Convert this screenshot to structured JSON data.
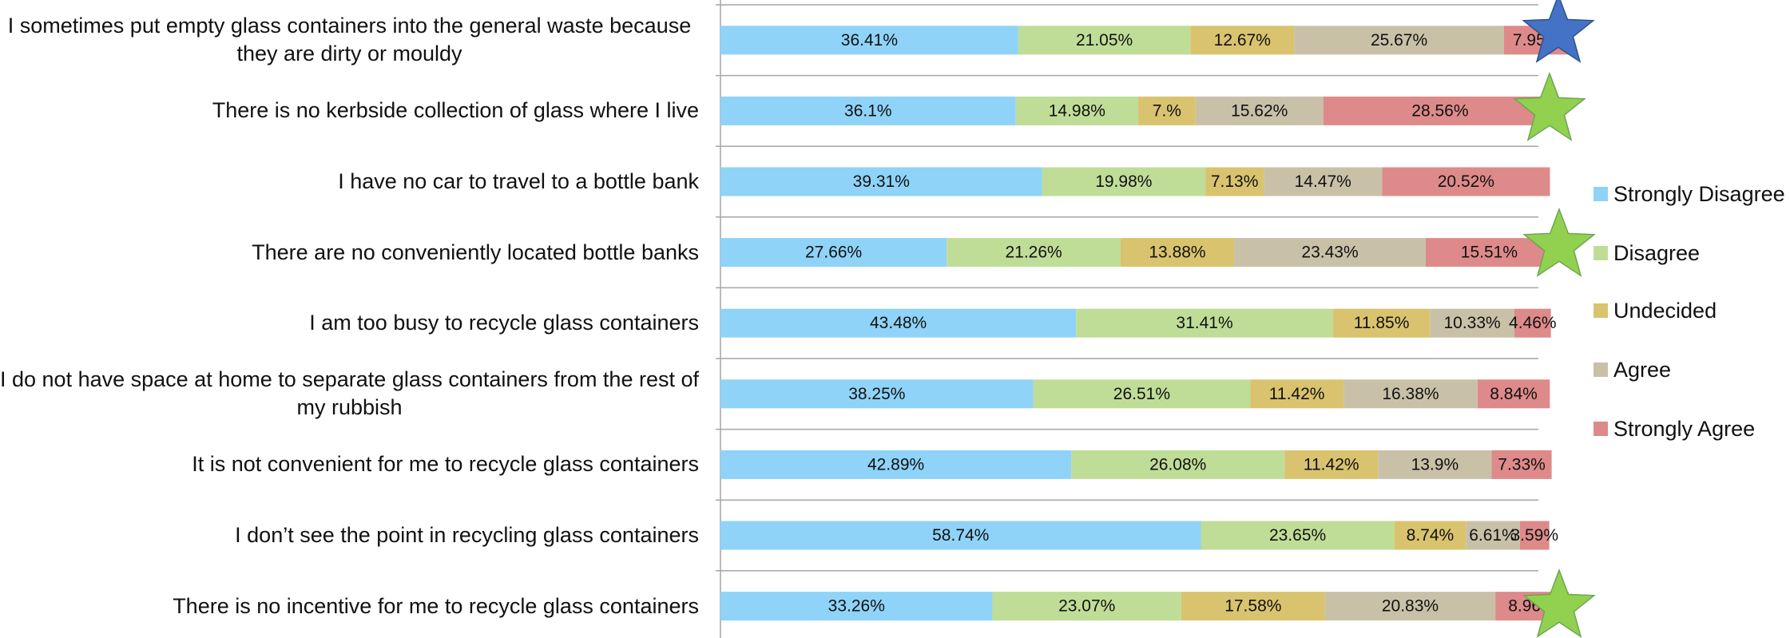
{
  "chart_data": {
    "type": "stacked_bar_horizontal",
    "categories": [
      "I sometimes put empty glass containers into the general waste because they are dirty or mouldy",
      "There is no kerbside collection of glass where I live",
      "I have no car to travel to a bottle bank",
      "There are no conveniently located bottle banks",
      "I am too busy to recycle glass containers",
      "I do not have space at home to separate glass containers from the rest of my rubbish",
      "It is not convenient for me to recycle glass containers",
      "I don’t see the point in recycling glass containers",
      "There is no incentive for me to recycle glass containers"
    ],
    "xlim": [
      0,
      100
    ],
    "series": [
      {
        "name": "Strongly Disagree",
        "color": "#8fd3f8",
        "values": [
          36.41,
          36.1,
          39.31,
          27.66,
          43.48,
          38.25,
          42.89,
          58.74,
          33.26
        ],
        "value_labels": [
          "36.41%",
          "36.1%",
          "39.31%",
          "27.66%",
          "43.48%",
          "38.25%",
          "42.89%",
          "58.74%",
          "33.26%"
        ]
      },
      {
        "name": "Disagree",
        "color": "#bfdd97",
        "values": [
          21.05,
          14.98,
          19.98,
          21.26,
          31.41,
          26.51,
          26.08,
          23.65,
          23.07
        ],
        "value_labels": [
          "21.05%",
          "14.98%",
          "19.98%",
          "21.26%",
          "31.41%",
          "26.51%",
          "26.08%",
          "23.65%",
          "23.07%"
        ]
      },
      {
        "name": "Undecided",
        "color": "#d9c36e",
        "values": [
          12.67,
          7.0,
          7.13,
          13.88,
          11.85,
          11.42,
          11.42,
          8.74,
          17.58
        ],
        "value_labels": [
          "12.67%",
          "7.%",
          "7.13%",
          "13.88%",
          "11.85%",
          "11.42%",
          "11.42%",
          "8.74%",
          "17.58%"
        ]
      },
      {
        "name": "Agree",
        "color": "#c8c1a8",
        "values": [
          25.67,
          15.62,
          14.47,
          23.43,
          10.33,
          16.38,
          13.9,
          6.61,
          20.83
        ],
        "value_labels": [
          "25.67%",
          "15.62%",
          "14.47%",
          "23.43%",
          "10.33%",
          "16.38%",
          "13.9%",
          "6.61%",
          "20.83%"
        ]
      },
      {
        "name": "Strongly Agree",
        "color": "#de8a8a",
        "values": [
          7.95,
          28.56,
          20.52,
          15.51,
          4.46,
          8.84,
          7.33,
          3.59,
          8.96
        ],
        "value_labels": [
          "7.95%",
          "28.56%",
          "20.52%",
          "15.51%",
          "4.46%",
          "8.84%",
          "7.33%",
          "3.59%",
          "8.96%"
        ]
      }
    ]
  }
}
